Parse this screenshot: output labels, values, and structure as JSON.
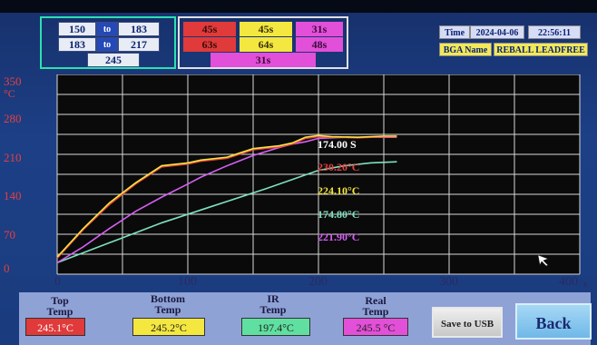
{
  "zones": {
    "row1": [
      "150",
      "to",
      "183"
    ],
    "row2": [
      "183",
      "to",
      "217"
    ],
    "row3": "245"
  },
  "times": {
    "row1": [
      "45s",
      "45s",
      "31s"
    ],
    "row2": [
      "63s",
      "64s",
      "48s"
    ],
    "row3": "31s"
  },
  "info": {
    "time_label": "Time",
    "date": "2024-04-06",
    "clock": "22:56:11",
    "bga_label": "BGA Name",
    "bga_value": "REBALL LEADFREE"
  },
  "chart_data": {
    "type": "line",
    "xlabel": "s",
    "ylabel": "°C",
    "xlim": [
      0,
      400
    ],
    "ylim": [
      0,
      350
    ],
    "x_ticks": [
      "0",
      "100",
      "200",
      "300",
      "400"
    ],
    "y_ticks": [
      "0",
      "70",
      "140",
      "210",
      "280",
      "350"
    ],
    "series": [
      {
        "color": "#f2e640",
        "x": [
          0,
          20,
          40,
          60,
          80,
          100,
          110,
          130,
          150,
          170,
          180,
          190,
          200,
          210,
          230,
          250,
          260
        ],
        "y": [
          30,
          80,
          125,
          160,
          190,
          195,
          200,
          205,
          220,
          225,
          230,
          240,
          243,
          241,
          240,
          242,
          242
        ]
      },
      {
        "color": "#e84040",
        "x": [
          0,
          20,
          40,
          60,
          80,
          100,
          110,
          130,
          150,
          170,
          180,
          190,
          200,
          210,
          230,
          250,
          260
        ],
        "y": [
          28,
          78,
          122,
          158,
          188,
          193,
          198,
          203,
          218,
          223,
          228,
          238,
          241,
          240,
          239,
          241,
          241
        ]
      },
      {
        "color": "#d65ef5",
        "x": [
          0,
          20,
          40,
          60,
          80,
          100,
          110,
          130,
          150,
          170,
          180,
          190,
          200,
          220,
          240,
          260
        ],
        "y": [
          20,
          48,
          80,
          110,
          135,
          158,
          170,
          190,
          208,
          222,
          228,
          232,
          238,
          240,
          240,
          240
        ]
      },
      {
        "color": "#7fe0c0",
        "x": [
          0,
          40,
          80,
          120,
          160,
          200,
          220,
          240,
          260
        ],
        "y": [
          20,
          55,
          90,
          120,
          150,
          182,
          190,
          195,
          197
        ]
      }
    ],
    "annotations": [
      {
        "text": "174.00 S",
        "color": "#ffffff"
      },
      {
        "text": "230.20°C",
        "color": "#e84040"
      },
      {
        "text": "224.10°C",
        "color": "#f2e640"
      },
      {
        "text": "174.80°C",
        "color": "#7fe0c0"
      },
      {
        "text": "221.90°C",
        "color": "#d65ef5"
      }
    ]
  },
  "readouts": {
    "top_label": "Top\nTemp",
    "top_value": "245.1°C",
    "bottom_label": "Bottom\nTemp",
    "bottom_value": "245.2°C",
    "ir_label": "IR\nTemp",
    "ir_value": "197.4°C",
    "real_label": "Real\nTemp",
    "real_value": "245.5 °C",
    "save_button": "Save to USB",
    "back_button": "Back"
  }
}
